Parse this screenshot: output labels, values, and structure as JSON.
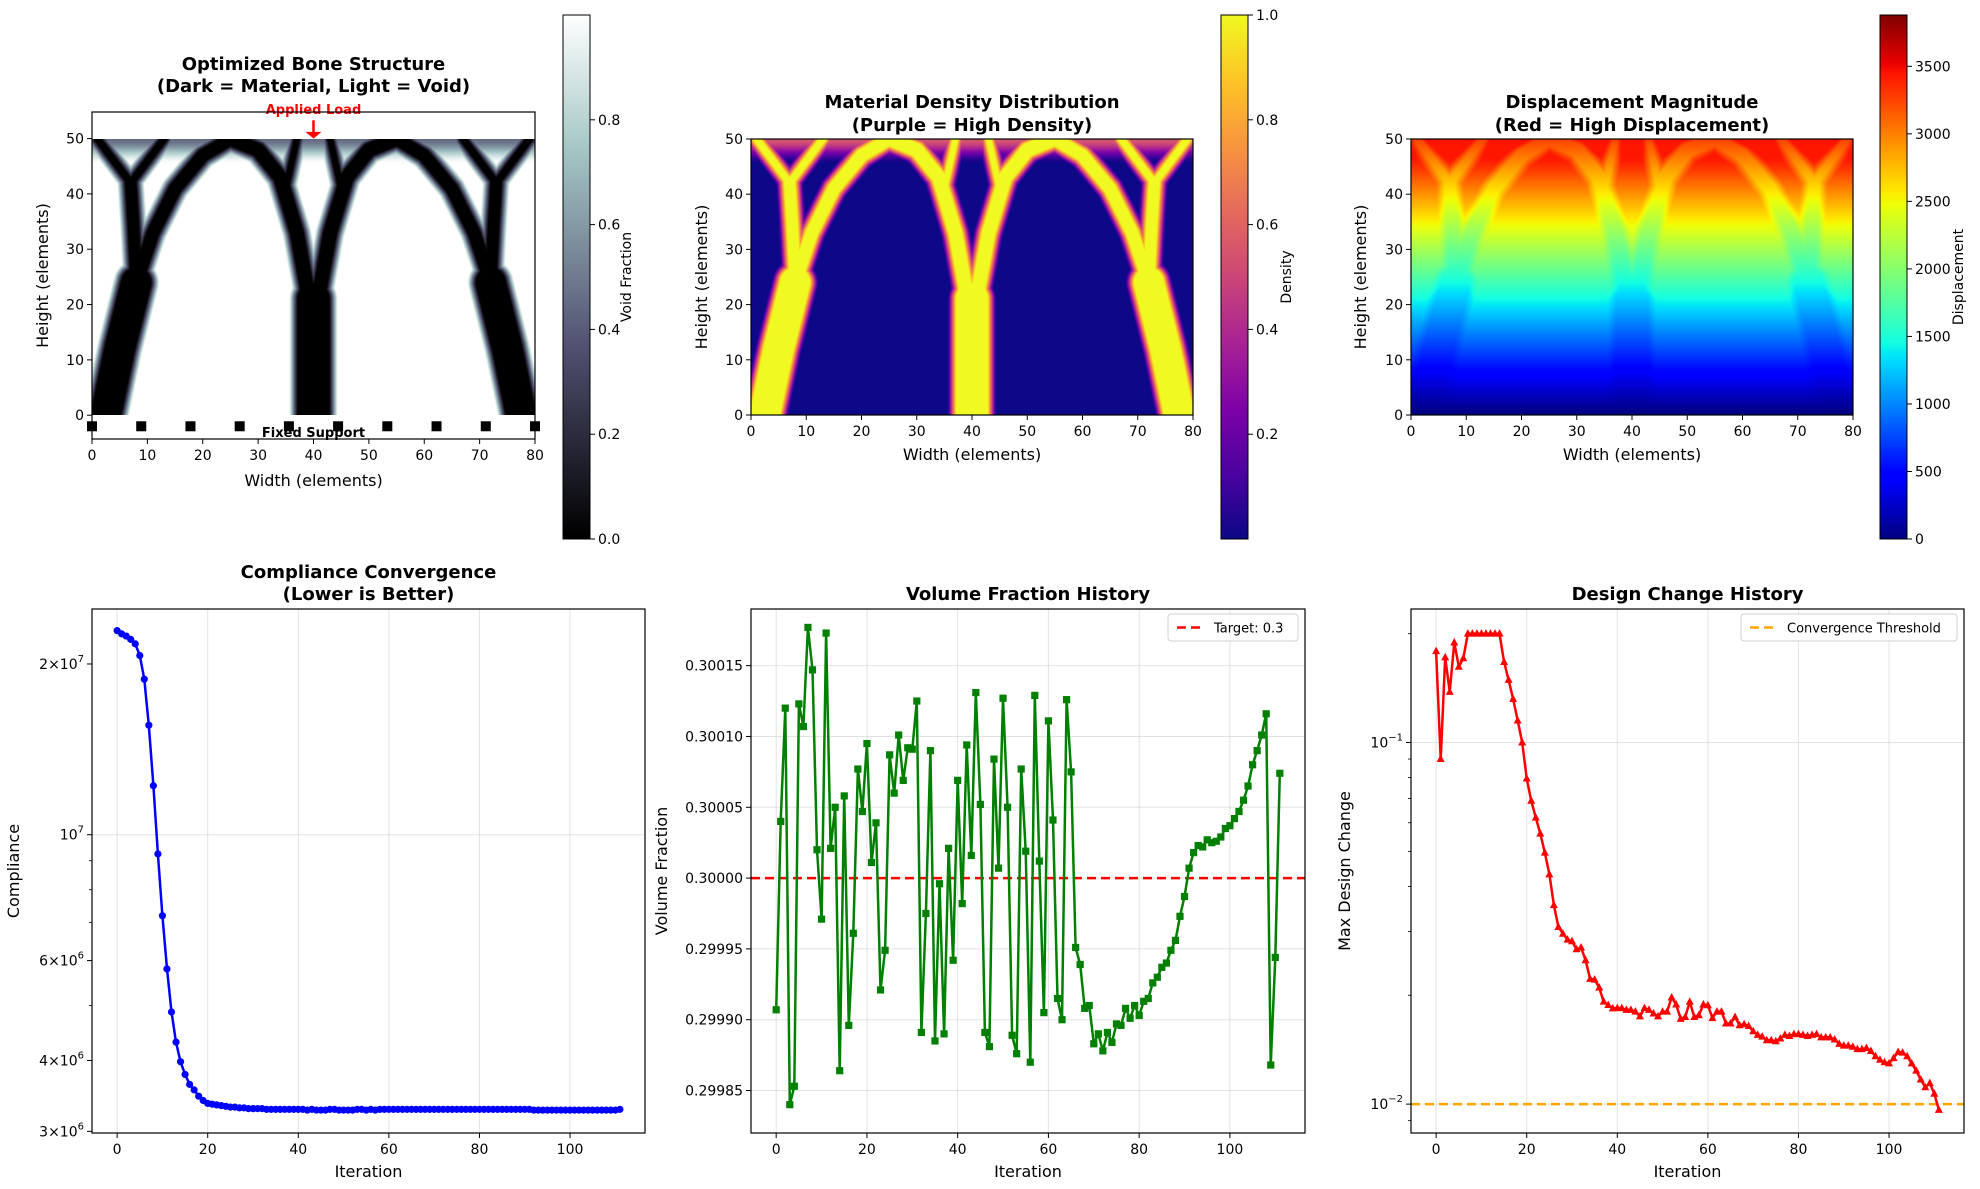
{
  "chart_data": [
    {
      "type": "heatmap",
      "title_line1": "Optimized Bone Structure",
      "title_line2": "(Dark = Material, Light = Void)",
      "xlabel": "Width (elements)",
      "ylabel": "Height (elements)",
      "xlim": [
        0,
        80
      ],
      "ylim": [
        -4.3,
        54.8
      ],
      "xticks": [
        0,
        10,
        20,
        30,
        40,
        50,
        60,
        70,
        80
      ],
      "xtick_labels": [
        "0",
        "10",
        "20",
        "30",
        "40",
        "50",
        "60",
        "70",
        "80"
      ],
      "yticks": [
        0,
        10,
        20,
        30,
        40,
        50
      ],
      "ytick_labels": [
        "0",
        "10",
        "20",
        "30",
        "40",
        "50"
      ],
      "grid": false,
      "grid_size": [
        80,
        50
      ],
      "colormap": "bone",
      "colorbar": {
        "label": "Void Fraction",
        "range": [
          0,
          1
        ],
        "ticks": [
          0,
          0.2,
          0.4,
          0.6,
          0.8
        ],
        "tick_labels": [
          "0.0",
          "0.2",
          "0.4",
          "0.6",
          "0.8"
        ]
      },
      "annotations": {
        "load_label": "Applied Load",
        "load_x": 40,
        "load_color": "#ff0000",
        "support_label": "Fixed Support",
        "support_y": -2,
        "support_x": [
          0,
          8.89,
          17.78,
          26.67,
          35.56,
          44.44,
          53.33,
          62.22,
          71.11,
          80
        ]
      }
    },
    {
      "type": "heatmap",
      "title_line1": "Material Density Distribution",
      "title_line2": "(Purple = High Density)",
      "xlabel": "Width (elements)",
      "ylabel": "Height (elements)",
      "xlim": [
        0,
        80
      ],
      "ylim": [
        0,
        50
      ],
      "xticks": [
        0,
        10,
        20,
        30,
        40,
        50,
        60,
        70,
        80
      ],
      "xtick_labels": [
        "0",
        "10",
        "20",
        "30",
        "40",
        "50",
        "60",
        "70",
        "80"
      ],
      "yticks": [
        0,
        10,
        20,
        30,
        40,
        50
      ],
      "ytick_labels": [
        "0",
        "10",
        "20",
        "30",
        "40",
        "50"
      ],
      "grid": false,
      "grid_size": [
        80,
        50
      ],
      "colormap": "plasma",
      "colorbar": {
        "label": "Density",
        "range": [
          0,
          1
        ],
        "ticks": [
          0.2,
          0.4,
          0.6,
          0.8,
          1.0
        ],
        "tick_labels": [
          "0.2",
          "0.4",
          "0.6",
          "0.8",
          "1.0"
        ]
      }
    },
    {
      "type": "heatmap",
      "title_line1": "Displacement Magnitude",
      "title_line2": "(Red = High Displacement)",
      "xlabel": "Width (elements)",
      "ylabel": "Height (elements)",
      "xlim": [
        0,
        80
      ],
      "ylim": [
        0,
        50
      ],
      "xticks": [
        0,
        10,
        20,
        30,
        40,
        50,
        60,
        70,
        80
      ],
      "xtick_labels": [
        "0",
        "10",
        "20",
        "30",
        "40",
        "50",
        "60",
        "70",
        "80"
      ],
      "yticks": [
        0,
        10,
        20,
        30,
        40,
        50
      ],
      "ytick_labels": [
        "0",
        "10",
        "20",
        "30",
        "40",
        "50"
      ],
      "grid": false,
      "grid_size": [
        80,
        50
      ],
      "colormap": "jet",
      "colorbar": {
        "label": "Displacement",
        "range": [
          0,
          3880
        ],
        "ticks": [
          0,
          500,
          1000,
          1500,
          2000,
          2500,
          3000,
          3500
        ],
        "tick_labels": [
          "0",
          "500",
          "1000",
          "1500",
          "2000",
          "2500",
          "3000",
          "3500"
        ]
      }
    },
    {
      "type": "line",
      "title_line1": "Compliance Convergence",
      "title_line2": "(Lower is Better)",
      "xlabel": "Iteration",
      "ylabel": "Compliance",
      "yscale": "log",
      "xlim": [
        -5.55,
        116.55
      ],
      "ylim": [
        2980000,
        25000000
      ],
      "xticks": [
        0,
        20,
        40,
        60,
        80,
        100
      ],
      "xtick_labels": [
        "0",
        "20",
        "40",
        "60",
        "80",
        "100"
      ],
      "yticks": [
        3000000,
        4000000,
        6000000,
        10000000,
        20000000
      ],
      "ytick_bases": [
        "3×10",
        "4×10",
        "6×10",
        "10",
        "2×10"
      ],
      "ytick_exps": [
        "6",
        "6",
        "6",
        "7",
        "7"
      ],
      "yminor": [
        5000000,
        7000000,
        8000000,
        9000000
      ],
      "ygrid": [
        10000000
      ],
      "grid": true,
      "color": "#0000ff",
      "marker": "circle",
      "values": [
        22900000,
        22600000,
        22400000,
        22100000,
        21700000,
        20700000,
        18800000,
        15600000,
        12200000,
        9250000,
        7200000,
        5800000,
        4870000,
        4310000,
        3980000,
        3780000,
        3630000,
        3550000,
        3460000,
        3400000,
        3360000,
        3350000,
        3340000,
        3330000,
        3320000,
        3310000,
        3310000,
        3300000,
        3300000,
        3290000,
        3290000,
        3290000,
        3290000,
        3280000,
        3280000,
        3280000,
        3280000,
        3280000,
        3280000,
        3280000,
        3280000,
        3280000,
        3270000,
        3280000,
        3270000,
        3270000,
        3270000,
        3280000,
        3280000,
        3270000,
        3270000,
        3270000,
        3270000,
        3280000,
        3280000,
        3270000,
        3280000,
        3270000,
        3280000,
        3280000,
        3280000,
        3280000,
        3280000,
        3280000,
        3280000,
        3280000,
        3280000,
        3280000,
        3280000,
        3280000,
        3280000,
        3280000,
        3280000,
        3280000,
        3280000,
        3280000,
        3280000,
        3280000,
        3280000,
        3280000,
        3280000,
        3280000,
        3280000,
        3280000,
        3280000,
        3280000,
        3280000,
        3280000,
        3280000,
        3280000,
        3280000,
        3280000,
        3270000,
        3270000,
        3270000,
        3270000,
        3270000,
        3270000,
        3270000,
        3270000,
        3270000,
        3270000,
        3270000,
        3270000,
        3270000,
        3270000,
        3270000,
        3270000,
        3270000,
        3270000,
        3270000,
        3280000
      ]
    },
    {
      "type": "line",
      "title_line1": "Volume Fraction History",
      "xlabel": "Iteration",
      "ylabel": "Volume Fraction",
      "yscale": "linear",
      "xlim": [
        -5.55,
        116.55
      ],
      "ylim": [
        0.29982,
        0.30019
      ],
      "xticks": [
        0,
        20,
        40,
        60,
        80,
        100
      ],
      "xtick_labels": [
        "0",
        "20",
        "40",
        "60",
        "80",
        "100"
      ],
      "yticks": [
        0.29985,
        0.2999,
        0.29995,
        0.3,
        0.30005,
        0.3001,
        0.30015
      ],
      "ytick_labels": [
        "0.29985",
        "0.29990",
        "0.29995",
        "0.30000",
        "0.30005",
        "0.30010",
        "0.30015"
      ],
      "grid": true,
      "color": "#008000",
      "marker": "square",
      "legend": {
        "label": "Target: 0.3",
        "value": 0.3,
        "color": "#ff0000",
        "placement": "top-right"
      },
      "values": [
        0.299907,
        0.30004,
        0.30012,
        0.29984,
        0.299853,
        0.300123,
        0.300107,
        0.300177,
        0.300147,
        0.30002,
        0.299971,
        0.300173,
        0.300021,
        0.30005,
        0.299864,
        0.300058,
        0.299896,
        0.299961,
        0.300077,
        0.300047,
        0.300095,
        0.300011,
        0.300039,
        0.299921,
        0.299949,
        0.300087,
        0.30006,
        0.300101,
        0.300069,
        0.300092,
        0.300091,
        0.300125,
        0.299891,
        0.299975,
        0.30009,
        0.299885,
        0.299996,
        0.29989,
        0.300021,
        0.299942,
        0.300069,
        0.299982,
        0.300094,
        0.300016,
        0.300131,
        0.300052,
        0.299891,
        0.299881,
        0.300084,
        0.300007,
        0.300127,
        0.30005,
        0.299889,
        0.299876,
        0.300077,
        0.300019,
        0.29987,
        0.300129,
        0.300012,
        0.299905,
        0.300111,
        0.300041,
        0.299915,
        0.2999,
        0.300126,
        0.300075,
        0.299951,
        0.299939,
        0.299908,
        0.29991,
        0.299883,
        0.29989,
        0.299878,
        0.299891,
        0.299884,
        0.299897,
        0.299896,
        0.299908,
        0.299901,
        0.29991,
        0.299903,
        0.299913,
        0.299915,
        0.299926,
        0.29993,
        0.299937,
        0.29994,
        0.299949,
        0.299956,
        0.299973,
        0.299987,
        0.300007,
        0.300018,
        0.300023,
        0.300022,
        0.300027,
        0.300025,
        0.300026,
        0.300029,
        0.300035,
        0.300037,
        0.300042,
        0.300047,
        0.300055,
        0.300065,
        0.30008,
        0.30009,
        0.300101,
        0.300116,
        0.299868,
        0.299944,
        0.300074
      ]
    },
    {
      "type": "line",
      "title_line1": "Design Change History",
      "xlabel": "Iteration",
      "ylabel": "Max Design Change",
      "yscale": "log",
      "xlim": [
        -5.55,
        116.55
      ],
      "ylim": [
        0.00832,
        0.234
      ],
      "xticks": [
        0,
        20,
        40,
        60,
        80,
        100
      ],
      "xtick_labels": [
        "0",
        "20",
        "40",
        "60",
        "80",
        "100"
      ],
      "yticks": [
        0.01,
        0.1
      ],
      "ytick_bases": [
        "10",
        "10"
      ],
      "ytick_exps": [
        "−2",
        "−1"
      ],
      "yminor": [
        0.009,
        0.02,
        0.03,
        0.04,
        0.05,
        0.06,
        0.07,
        0.08,
        0.09,
        0.2
      ],
      "ygrid": [
        0.01,
        0.1
      ],
      "grid": true,
      "color": "#ff0000",
      "marker": "triangle",
      "legend": {
        "label": "Convergence Threshold",
        "value": 0.01,
        "color": "#ffa500",
        "placement": "top-right"
      },
      "values": [
        0.179,
        0.09,
        0.172,
        0.138,
        0.189,
        0.162,
        0.171,
        0.2,
        0.2,
        0.2,
        0.2,
        0.2,
        0.2,
        0.2,
        0.2,
        0.167,
        0.149,
        0.132,
        0.115,
        0.1,
        0.0795,
        0.069,
        0.062,
        0.056,
        0.0496,
        0.0432,
        0.0355,
        0.0309,
        0.0296,
        0.0285,
        0.0282,
        0.0268,
        0.0271,
        0.025,
        0.0222,
        0.0221,
        0.021,
        0.0192,
        0.0188,
        0.0184,
        0.01843,
        0.01843,
        0.01822,
        0.01822,
        0.01802,
        0.01749,
        0.01843,
        0.01822,
        0.01781,
        0.01749,
        0.01802,
        0.01802,
        0.01972,
        0.01885,
        0.01721,
        0.01741,
        0.01919,
        0.01741,
        0.01761,
        0.01885,
        0.01877,
        0.01729,
        0.01802,
        0.01802,
        0.01671,
        0.01671,
        0.01741,
        0.01652,
        0.01663,
        0.01645,
        0.0159,
        0.01554,
        0.01537,
        0.01502,
        0.01502,
        0.01492,
        0.01519,
        0.01554,
        0.01543,
        0.01561,
        0.01561,
        0.01554,
        0.01543,
        0.01554,
        0.01561,
        0.0153,
        0.0153,
        0.0153,
        0.01509,
        0.01467,
        0.01451,
        0.01451,
        0.01441,
        0.01419,
        0.01419,
        0.01429,
        0.01403,
        0.01356,
        0.01326,
        0.01305,
        0.01296,
        0.0134,
        0.01394,
        0.01388,
        0.01356,
        0.01296,
        0.01238,
        0.0117,
        0.01113,
        0.01143,
        0.01068,
        0.00964
      ]
    }
  ]
}
